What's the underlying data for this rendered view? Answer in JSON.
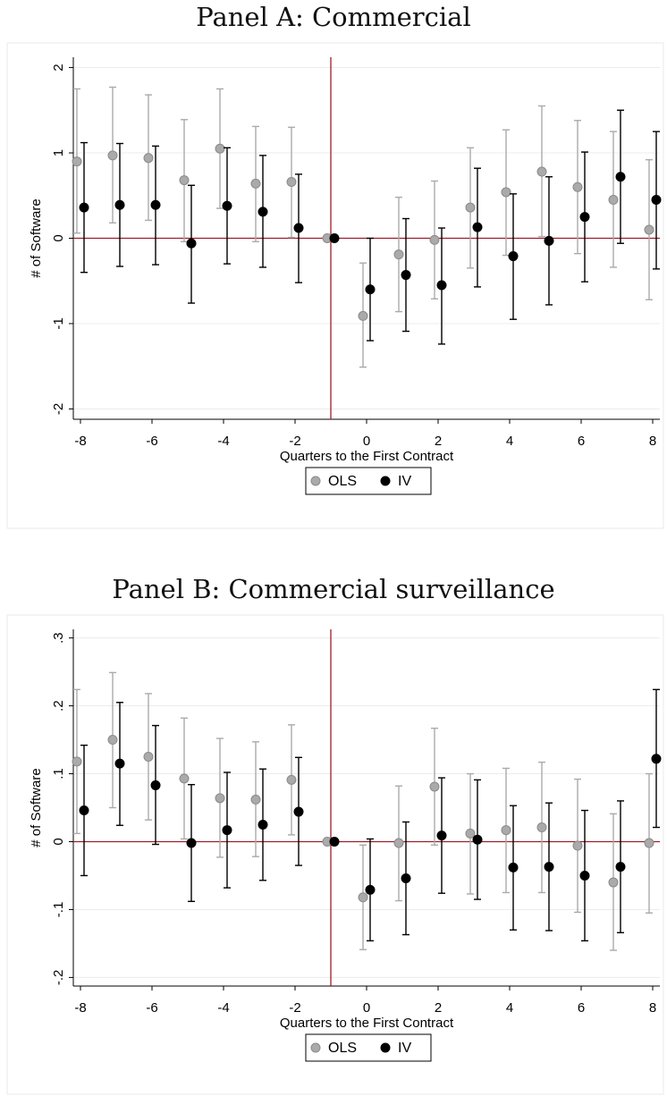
{
  "chart_data": [
    {
      "type": "scatter",
      "title": "Panel A: Commercial",
      "xlabel": "Quarters to the First Contract",
      "ylabel": "# of Software",
      "xlim": [
        -8.2,
        8.2
      ],
      "ylim": [
        -2.1,
        2.1
      ],
      "xticks": [
        -8,
        -6,
        -4,
        -2,
        0,
        2,
        4,
        6,
        8
      ],
      "xtick_labels": [
        "-8",
        "-6",
        "-4",
        "-2",
        "0",
        "2",
        "4",
        "6",
        "8"
      ],
      "yticks": [
        -2,
        -1,
        0,
        1,
        2
      ],
      "ytick_labels": [
        "-2",
        "-1",
        "0",
        "1",
        "2"
      ],
      "vline_x": -1,
      "hline_y": 0,
      "grid": true,
      "legend_position": "bottom-center",
      "x": [
        -8,
        -7,
        -6,
        -5,
        -4,
        -3,
        -2,
        -1,
        0,
        1,
        2,
        3,
        4,
        5,
        6,
        7,
        8
      ],
      "series": [
        {
          "name": "OLS",
          "color": "#aaaaaa",
          "offset": -0.1,
          "values": [
            0.9,
            0.97,
            0.94,
            0.68,
            1.05,
            0.64,
            0.66,
            0.0,
            -0.91,
            -0.19,
            -0.02,
            0.36,
            0.54,
            0.78,
            0.6,
            0.45,
            0.1
          ],
          "ci_low": [
            0.06,
            0.18,
            0.21,
            -0.04,
            0.35,
            -0.04,
            0.01,
            0.0,
            -1.51,
            -0.86,
            -0.71,
            -0.35,
            -0.2,
            0.02,
            -0.18,
            -0.34,
            -0.72
          ],
          "ci_high": [
            1.75,
            1.77,
            1.68,
            1.39,
            1.75,
            1.31,
            1.3,
            0.0,
            -0.29,
            0.48,
            0.67,
            1.06,
            1.27,
            1.55,
            1.38,
            1.25,
            0.92
          ]
        },
        {
          "name": "IV",
          "color": "#000000",
          "offset": 0.1,
          "values": [
            0.36,
            0.39,
            0.39,
            -0.06,
            0.38,
            0.31,
            0.12,
            0.0,
            -0.6,
            -0.43,
            -0.55,
            0.13,
            -0.21,
            -0.03,
            0.25,
            0.72,
            0.45
          ],
          "ci_low": [
            -0.4,
            -0.33,
            -0.31,
            -0.76,
            -0.3,
            -0.34,
            -0.52,
            0.0,
            -1.2,
            -1.09,
            -1.24,
            -0.57,
            -0.95,
            -0.78,
            -0.51,
            -0.06,
            -0.36
          ],
          "ci_high": [
            1.12,
            1.11,
            1.08,
            0.62,
            1.06,
            0.97,
            0.75,
            0.0,
            0.0,
            0.23,
            0.12,
            0.82,
            0.52,
            0.72,
            1.01,
            1.5,
            1.25
          ]
        }
      ]
    },
    {
      "type": "scatter",
      "title": "Panel B: Commercial surveillance",
      "xlabel": "Quarters to the First Contract",
      "ylabel": "# of Software",
      "xlim": [
        -8.2,
        8.2
      ],
      "ylim": [
        -0.21,
        0.31
      ],
      "xticks": [
        -8,
        -6,
        -4,
        -2,
        0,
        2,
        4,
        6,
        8
      ],
      "xtick_labels": [
        "-8",
        "-6",
        "-4",
        "-2",
        "0",
        "2",
        "4",
        "6",
        "8"
      ],
      "yticks": [
        -0.2,
        -0.1,
        0,
        0.1,
        0.2,
        0.3
      ],
      "ytick_labels": [
        "-.2",
        "-.1",
        "0",
        ".1",
        ".2",
        ".3"
      ],
      "vline_x": -1,
      "hline_y": 0,
      "grid": true,
      "legend_position": "bottom-center",
      "x": [
        -8,
        -7,
        -6,
        -5,
        -4,
        -3,
        -2,
        -1,
        0,
        1,
        2,
        3,
        4,
        5,
        6,
        7,
        8
      ],
      "series": [
        {
          "name": "OLS",
          "color": "#aaaaaa",
          "offset": -0.1,
          "values": [
            0.118,
            0.15,
            0.125,
            0.093,
            0.064,
            0.062,
            0.091,
            0.0,
            -0.082,
            -0.002,
            0.081,
            0.012,
            0.017,
            0.021,
            -0.006,
            -0.06,
            -0.002
          ],
          "ci_low": [
            0.012,
            0.05,
            0.032,
            0.004,
            -0.023,
            -0.022,
            0.01,
            0.0,
            -0.159,
            -0.087,
            -0.005,
            -0.077,
            -0.075,
            -0.075,
            -0.104,
            -0.16,
            -0.105
          ],
          "ci_high": [
            0.224,
            0.249,
            0.218,
            0.182,
            0.152,
            0.147,
            0.172,
            0.0,
            -0.005,
            0.082,
            0.167,
            0.1,
            0.108,
            0.117,
            0.092,
            0.041,
            0.1
          ]
        },
        {
          "name": "IV",
          "color": "#000000",
          "offset": 0.1,
          "values": [
            0.046,
            0.115,
            0.083,
            -0.002,
            0.017,
            0.025,
            0.044,
            0.0,
            -0.071,
            -0.054,
            0.009,
            0.003,
            -0.038,
            -0.037,
            -0.05,
            -0.037,
            0.122
          ],
          "ci_low": [
            -0.05,
            0.024,
            -0.004,
            -0.088,
            -0.068,
            -0.057,
            -0.035,
            0.0,
            -0.146,
            -0.137,
            -0.076,
            -0.085,
            -0.13,
            -0.131,
            -0.146,
            -0.134,
            0.021
          ],
          "ci_high": [
            0.142,
            0.205,
            0.171,
            0.084,
            0.102,
            0.107,
            0.124,
            0.0,
            0.004,
            0.029,
            0.094,
            0.091,
            0.053,
            0.057,
            0.046,
            0.06,
            0.224
          ]
        }
      ]
    }
  ]
}
